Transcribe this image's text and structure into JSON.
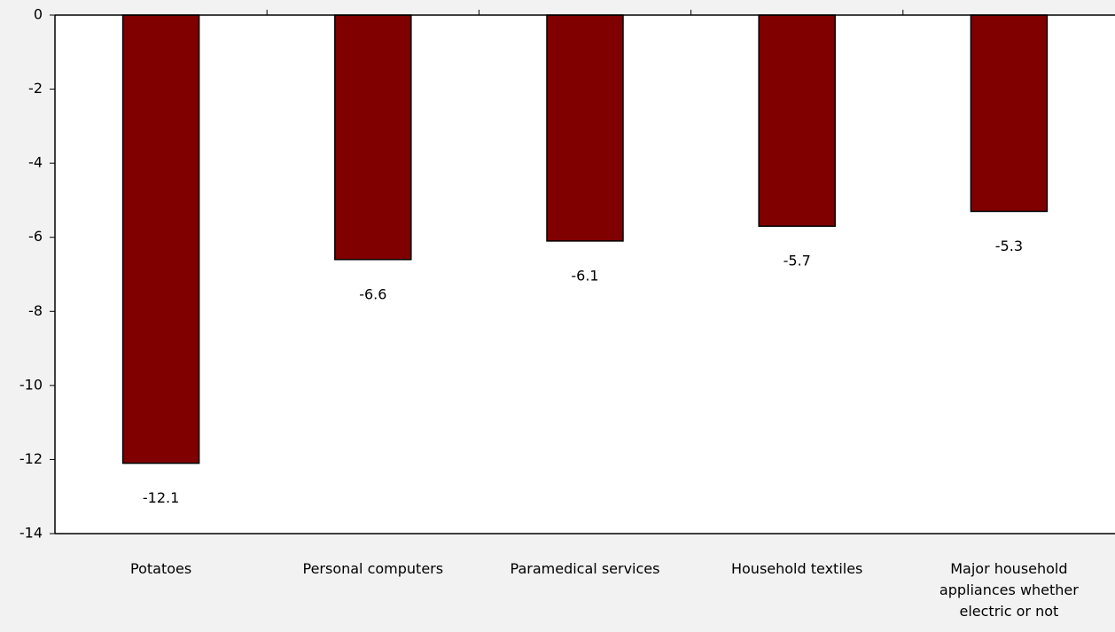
{
  "chart_data": {
    "type": "bar",
    "categories": [
      "Potatoes",
      "Personal computers",
      "Paramedical services",
      "Household textiles",
      "Major household appliances whether electric or not"
    ],
    "values": [
      -12.1,
      -6.6,
      -6.1,
      -5.7,
      -5.3
    ],
    "color": "#800000",
    "ylim": [
      -14,
      0
    ],
    "yticks": [
      0,
      -2,
      -4,
      -6,
      -8,
      -10,
      -12,
      -14
    ]
  }
}
